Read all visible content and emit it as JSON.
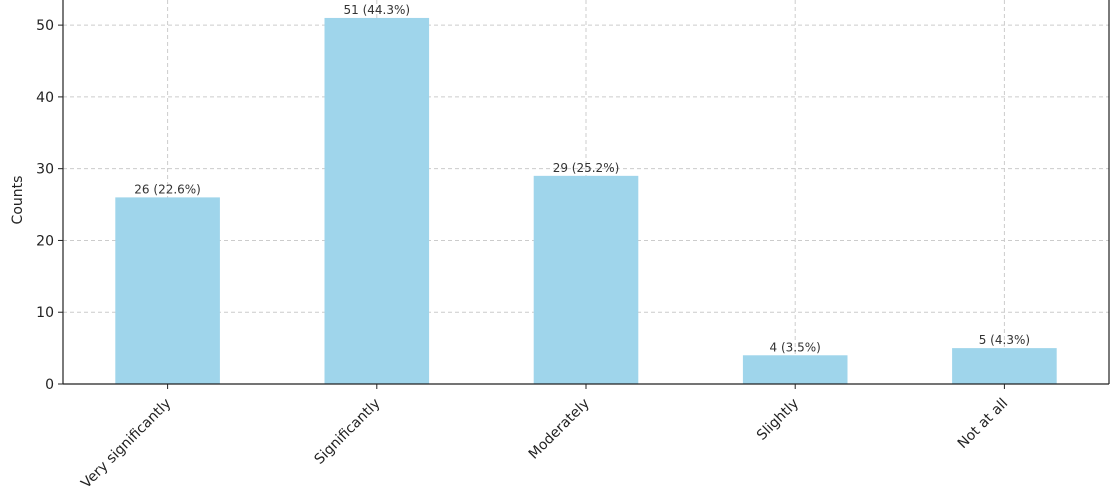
{
  "chart_data": {
    "type": "bar",
    "title": "",
    "xlabel": "",
    "ylabel": "Counts",
    "categories": [
      "Very significantly",
      "Significantly",
      "Moderately",
      "Slightly",
      "Not at all"
    ],
    "values": [
      26,
      51,
      29,
      4,
      5
    ],
    "data_labels": [
      "26 (22.6%)",
      "51 (44.3%)",
      "29 (25.2%)",
      "4 (3.5%)",
      "5 (4.3%)"
    ],
    "ylim": [
      0,
      53.5
    ],
    "yticks": [
      0,
      10,
      20,
      30,
      40,
      50
    ],
    "grid": true,
    "colors": {
      "bar": "#9fd5eb",
      "grid": "#cccccc",
      "axis": "#222222"
    }
  }
}
